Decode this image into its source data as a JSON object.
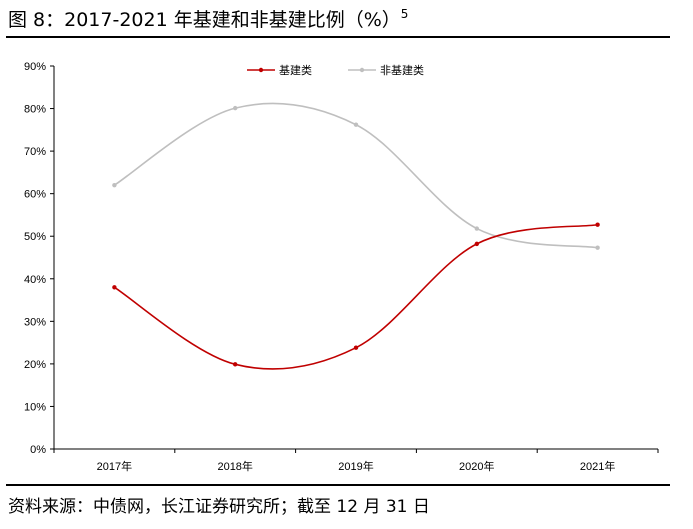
{
  "figure": {
    "title": "图 8：2017-2021 年基建和非基建比例（%）",
    "footnote": "5",
    "source": "资料来源：中债网，长江证券研究所；截至 12 月 31 日"
  },
  "chart_data": {
    "type": "line",
    "title": "",
    "xlabel": "",
    "ylabel": "",
    "categories": [
      "2017年",
      "2018年",
      "2019年",
      "2020年",
      "2021年"
    ],
    "ylim": [
      0,
      90
    ],
    "yticks": [
      "0%",
      "10%",
      "20%",
      "30%",
      "40%",
      "50%",
      "60%",
      "70%",
      "80%",
      "90%"
    ],
    "smooth": true,
    "grid": false,
    "legend_position": "top-center",
    "series": [
      {
        "name": "基建类",
        "color": "#c00000",
        "values": [
          38,
          19.9,
          23.8,
          48.2,
          52.7
        ]
      },
      {
        "name": "非基建类",
        "color": "#bfbfbf",
        "values": [
          62,
          80.1,
          76.2,
          51.8,
          47.3
        ]
      }
    ]
  }
}
